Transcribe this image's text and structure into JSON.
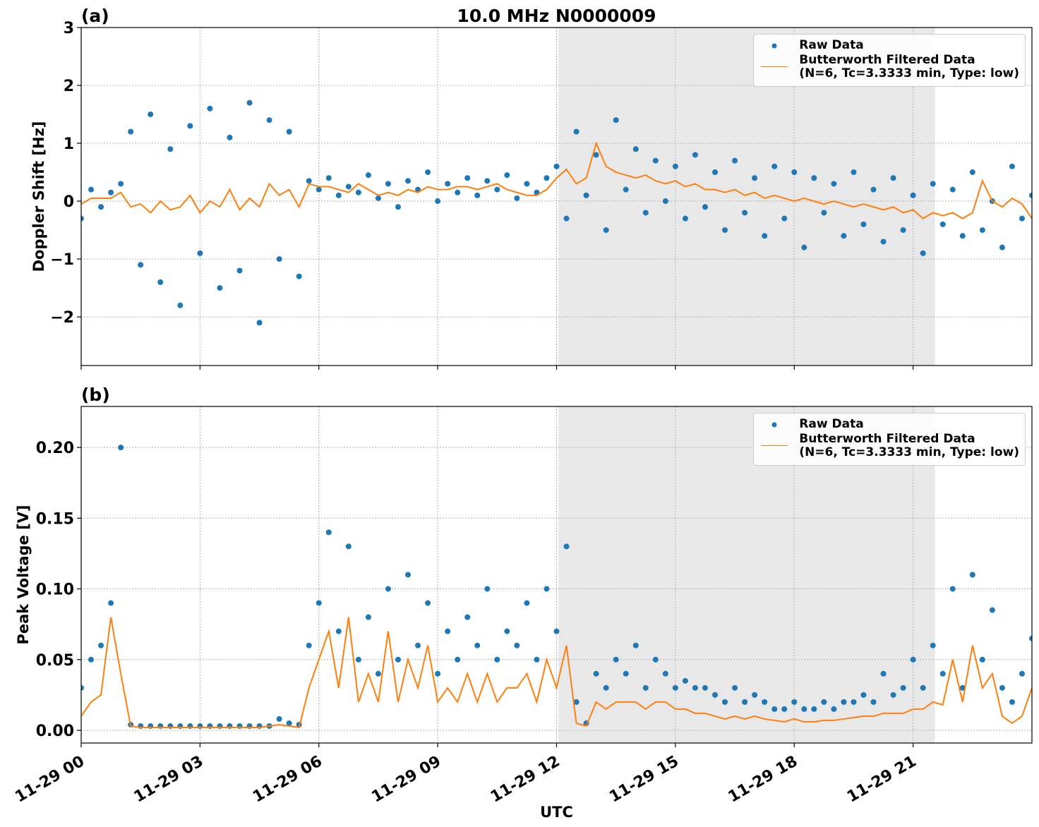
{
  "chart_data": [
    {
      "type": "scatter",
      "title": "10.0 MHz N0000009",
      "panel_label": "(a)",
      "y_label": "Doppler Shift [Hz]",
      "xlim": [
        0,
        24
      ],
      "xticks": [
        0,
        3,
        6,
        9,
        12,
        15,
        18,
        21
      ],
      "ylim": [
        -2.84,
        3
      ],
      "yticks": [
        {
          "value": -2,
          "label": "−2"
        },
        {
          "value": -1,
          "label": "−1"
        },
        0,
        1,
        2,
        3
      ],
      "grid": true,
      "legend": "upper right",
      "shade": [
        12.05,
        21.55
      ],
      "shade_color": "#e8e8e8",
      "x": [
        0,
        0.25,
        0.5,
        0.75,
        1,
        1.25,
        1.5,
        1.75,
        2,
        2.25,
        2.5,
        2.75,
        3,
        3.25,
        3.5,
        3.75,
        4,
        4.25,
        4.5,
        4.75,
        5,
        5.25,
        5.5,
        5.75,
        6,
        6.25,
        6.5,
        6.75,
        7,
        7.25,
        7.5,
        7.75,
        8,
        8.25,
        8.5,
        8.75,
        9,
        9.25,
        9.5,
        9.75,
        10,
        10.25,
        10.5,
        10.75,
        11,
        11.25,
        11.5,
        11.75,
        12,
        12.25,
        12.5,
        12.75,
        13,
        13.25,
        13.5,
        13.75,
        14,
        14.25,
        14.5,
        14.75,
        15,
        15.25,
        15.5,
        15.75,
        16,
        16.25,
        16.5,
        16.75,
        17,
        17.25,
        17.5,
        17.75,
        18,
        18.25,
        18.5,
        18.75,
        19,
        19.25,
        19.5,
        19.75,
        20,
        20.25,
        20.5,
        20.75,
        21,
        21.25,
        21.5,
        21.75,
        22,
        22.25,
        22.5,
        22.75,
        23,
        23.25,
        23.5,
        23.75,
        24
      ],
      "series": [
        {
          "name": "Raw Data",
          "type": "scatter",
          "color": "#1f77b4",
          "values": [
            -0.3,
            0.2,
            -0.1,
            0.15,
            0.3,
            1.2,
            -1.1,
            1.5,
            -1.4,
            0.9,
            -1.8,
            1.3,
            -0.9,
            1.6,
            -1.5,
            1.1,
            -1.2,
            1.7,
            -2.1,
            1.4,
            -1.0,
            1.2,
            -1.3,
            0.35,
            0.2,
            0.4,
            0.1,
            0.25,
            0.15,
            0.45,
            0.05,
            0.3,
            -0.1,
            0.35,
            0.2,
            0.5,
            0.0,
            0.3,
            0.15,
            0.4,
            0.1,
            0.35,
            0.2,
            0.45,
            0.05,
            0.3,
            0.15,
            0.4,
            0.6,
            -0.3,
            1.2,
            0.1,
            0.8,
            -0.5,
            1.4,
            0.2,
            0.9,
            -0.2,
            0.7,
            0.0,
            0.6,
            -0.3,
            0.8,
            -0.1,
            0.5,
            -0.5,
            0.7,
            -0.2,
            0.4,
            -0.6,
            0.6,
            -0.3,
            0.5,
            -0.8,
            0.4,
            -0.2,
            0.3,
            -0.6,
            0.5,
            -0.4,
            0.2,
            -0.7,
            0.4,
            -0.5,
            0.1,
            -0.9,
            0.3,
            -0.4,
            0.2,
            -0.6,
            0.5,
            -0.5,
            0.0,
            -0.8,
            0.6,
            -0.3,
            0.1
          ]
        },
        {
          "name": "Butterworth Filtered Data\n(N=6, Tc=3.3333 min, Type: low)",
          "type": "line",
          "color": "#ff7f0e",
          "values": [
            -0.05,
            0.05,
            0.05,
            0.05,
            0.15,
            -0.1,
            -0.05,
            -0.2,
            0.0,
            -0.15,
            -0.1,
            0.1,
            -0.2,
            0.0,
            -0.1,
            0.2,
            -0.15,
            0.05,
            -0.1,
            0.3,
            0.1,
            0.2,
            -0.1,
            0.3,
            0.25,
            0.25,
            0.2,
            0.15,
            0.3,
            0.2,
            0.1,
            0.15,
            0.1,
            0.2,
            0.15,
            0.25,
            0.2,
            0.2,
            0.25,
            0.25,
            0.2,
            0.25,
            0.3,
            0.2,
            0.15,
            0.1,
            0.1,
            0.2,
            0.4,
            0.55,
            0.3,
            0.4,
            1.0,
            0.6,
            0.5,
            0.45,
            0.4,
            0.45,
            0.35,
            0.3,
            0.35,
            0.25,
            0.3,
            0.2,
            0.2,
            0.15,
            0.2,
            0.1,
            0.15,
            0.05,
            0.1,
            0.05,
            0.0,
            0.05,
            0.0,
            -0.05,
            0.0,
            -0.05,
            -0.1,
            -0.05,
            -0.1,
            -0.15,
            -0.1,
            -0.2,
            -0.15,
            -0.3,
            -0.2,
            -0.25,
            -0.2,
            -0.3,
            -0.2,
            0.35,
            0.0,
            -0.1,
            0.05,
            -0.05,
            -0.3
          ]
        }
      ]
    },
    {
      "type": "scatter",
      "panel_label": "(b)",
      "y_label": "Peak Voltage [V]",
      "x_label": "UTC",
      "xlim": [
        0,
        24
      ],
      "xticks": [
        {
          "value": 0,
          "label": "11-29 00"
        },
        {
          "value": 3,
          "label": "11-29 03"
        },
        {
          "value": 6,
          "label": "11-29 06"
        },
        {
          "value": 9,
          "label": "11-29 09"
        },
        {
          "value": 12,
          "label": "11-29 12"
        },
        {
          "value": 15,
          "label": "11-29 15"
        },
        {
          "value": 18,
          "label": "11-29 18"
        },
        {
          "value": 21,
          "label": "11-29 21"
        }
      ],
      "ylim": [
        -0.009,
        0.229
      ],
      "yticks": [
        {
          "value": 0,
          "label": "0.00"
        },
        {
          "value": 0.05,
          "label": "0.05"
        },
        {
          "value": 0.1,
          "label": "0.10"
        },
        {
          "value": 0.15,
          "label": "0.15"
        },
        {
          "value": 0.2,
          "label": "0.20"
        }
      ],
      "grid": true,
      "legend": "upper right",
      "shade": [
        12.05,
        21.55
      ],
      "shade_color": "#e8e8e8",
      "x": [
        0,
        0.25,
        0.5,
        0.75,
        1,
        1.25,
        1.5,
        1.75,
        2,
        2.25,
        2.5,
        2.75,
        3,
        3.25,
        3.5,
        3.75,
        4,
        4.25,
        4.5,
        4.75,
        5,
        5.25,
        5.5,
        5.75,
        6,
        6.25,
        6.5,
        6.75,
        7,
        7.25,
        7.5,
        7.75,
        8,
        8.25,
        8.5,
        8.75,
        9,
        9.25,
        9.5,
        9.75,
        10,
        10.25,
        10.5,
        10.75,
        11,
        11.25,
        11.5,
        11.75,
        12,
        12.25,
        12.5,
        12.75,
        13,
        13.25,
        13.5,
        13.75,
        14,
        14.25,
        14.5,
        14.75,
        15,
        15.25,
        15.5,
        15.75,
        16,
        16.25,
        16.5,
        16.75,
        17,
        17.25,
        17.5,
        17.75,
        18,
        18.25,
        18.5,
        18.75,
        19,
        19.25,
        19.5,
        19.75,
        20,
        20.25,
        20.5,
        20.75,
        21,
        21.25,
        21.5,
        21.75,
        22,
        22.25,
        22.5,
        22.75,
        23,
        23.25,
        23.5,
        23.75,
        24
      ],
      "series": [
        {
          "name": "Raw Data",
          "type": "scatter",
          "color": "#1f77b4",
          "values": [
            0.03,
            0.05,
            0.06,
            0.09,
            0.2,
            0.004,
            0.003,
            0.003,
            0.003,
            0.003,
            0.003,
            0.003,
            0.003,
            0.003,
            0.003,
            0.003,
            0.003,
            0.003,
            0.003,
            0.003,
            0.008,
            0.005,
            0.004,
            0.06,
            0.09,
            0.14,
            0.07,
            0.13,
            0.05,
            0.08,
            0.04,
            0.1,
            0.05,
            0.11,
            0.06,
            0.09,
            0.04,
            0.07,
            0.05,
            0.08,
            0.06,
            0.1,
            0.05,
            0.07,
            0.06,
            0.09,
            0.05,
            0.1,
            0.07,
            0.13,
            0.02,
            0.005,
            0.04,
            0.03,
            0.05,
            0.04,
            0.06,
            0.03,
            0.05,
            0.04,
            0.03,
            0.035,
            0.03,
            0.03,
            0.025,
            0.02,
            0.03,
            0.02,
            0.025,
            0.02,
            0.015,
            0.015,
            0.02,
            0.015,
            0.015,
            0.02,
            0.015,
            0.02,
            0.02,
            0.025,
            0.02,
            0.04,
            0.025,
            0.03,
            0.05,
            0.03,
            0.06,
            0.04,
            0.1,
            0.03,
            0.11,
            0.05,
            0.085,
            0.03,
            0.02,
            0.04,
            0.065
          ]
        },
        {
          "name": "Butterworth Filtered Data\n(N=6, Tc=3.3333 min, Type: low)",
          "type": "line",
          "color": "#ff7f0e",
          "values": [
            0.01,
            0.02,
            0.025,
            0.08,
            0.04,
            0.003,
            0.002,
            0.002,
            0.002,
            0.002,
            0.002,
            0.002,
            0.002,
            0.002,
            0.002,
            0.002,
            0.002,
            0.002,
            0.002,
            0.003,
            0.004,
            0.003,
            0.002,
            0.03,
            0.05,
            0.07,
            0.03,
            0.08,
            0.02,
            0.04,
            0.02,
            0.07,
            0.02,
            0.05,
            0.03,
            0.06,
            0.02,
            0.03,
            0.02,
            0.04,
            0.02,
            0.04,
            0.02,
            0.03,
            0.03,
            0.04,
            0.02,
            0.05,
            0.03,
            0.06,
            0.005,
            0.003,
            0.02,
            0.015,
            0.02,
            0.02,
            0.02,
            0.015,
            0.02,
            0.02,
            0.015,
            0.015,
            0.012,
            0.012,
            0.01,
            0.008,
            0.01,
            0.008,
            0.01,
            0.008,
            0.007,
            0.006,
            0.008,
            0.006,
            0.006,
            0.007,
            0.007,
            0.008,
            0.009,
            0.01,
            0.01,
            0.012,
            0.012,
            0.012,
            0.015,
            0.015,
            0.02,
            0.018,
            0.05,
            0.02,
            0.06,
            0.03,
            0.04,
            0.01,
            0.005,
            0.01,
            0.03
          ]
        }
      ]
    }
  ]
}
